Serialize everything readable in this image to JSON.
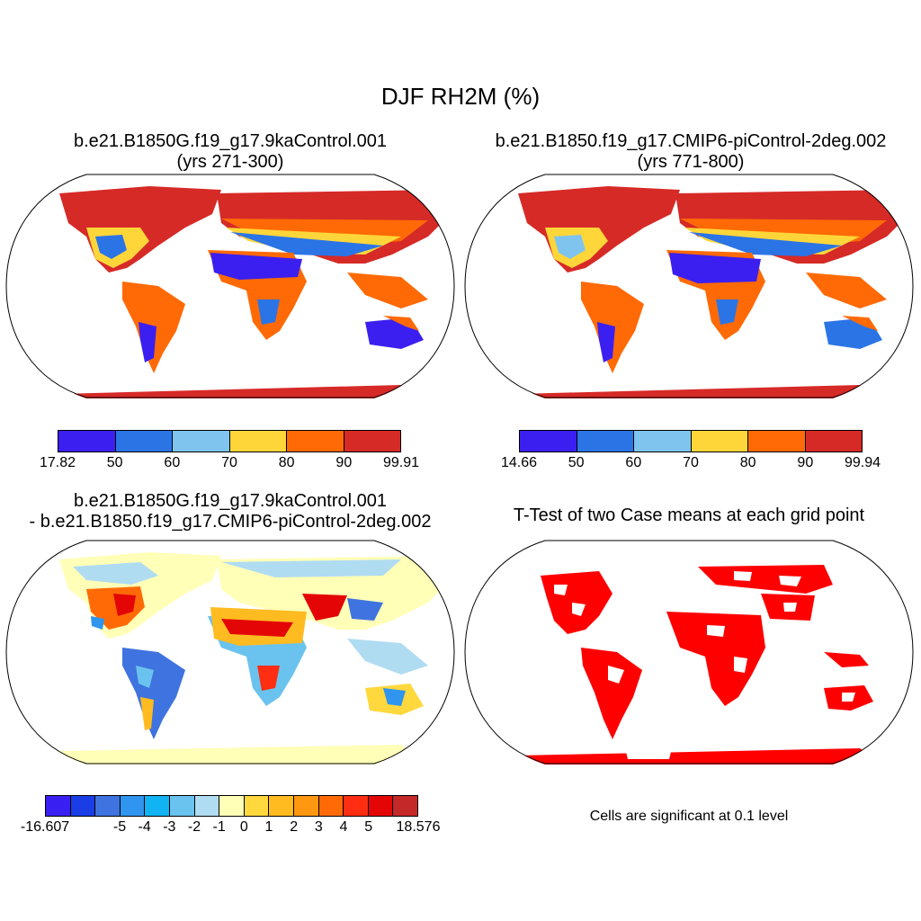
{
  "title": "DJF RH2M (%)",
  "panels": [
    {
      "title_line1": "b.e21.B1850G.f19_g17.9kaControl.001",
      "title_line2": "(yrs 271-300)",
      "colorbar": {
        "colors": [
          "#3b1ff0",
          "#2b74e6",
          "#7ec4ee",
          "#ffd63a",
          "#ff6a06",
          "#d62a27"
        ],
        "labels": [
          "17.82",
          "50",
          "60",
          "70",
          "80",
          "90",
          "99.91"
        ]
      }
    },
    {
      "title_line1": "b.e21.B1850.f19_g17.CMIP6-piControl-2deg.002",
      "title_line2": "(yrs 771-800)",
      "colorbar": {
        "colors": [
          "#3b1ff0",
          "#2b74e6",
          "#7ec4ee",
          "#ffd63a",
          "#ff6a06",
          "#d62a27"
        ],
        "labels": [
          "14.66",
          "50",
          "60",
          "70",
          "80",
          "90",
          "99.94"
        ]
      }
    },
    {
      "title_line1": "b.e21.B1850G.f19_g17.9kaControl.001",
      "title_line2": "- b.e21.B1850.f19_g17.CMIP6-piControl-2deg.002",
      "colorbar": {
        "colors": [
          "#3a1ff2",
          "#1b3de6",
          "#3f73df",
          "#2f95ee",
          "#12b3f2",
          "#6ac3ee",
          "#b0dcf2",
          "#ffffb8",
          "#ffd83d",
          "#ffbb20",
          "#ff9810",
          "#ff6a06",
          "#ff2e12",
          "#e40606",
          "#c42828"
        ],
        "labels": [
          "-16.607",
          "-5",
          "-4",
          "-3",
          "-2",
          "-1",
          "0",
          "1",
          "2",
          "3",
          "4",
          "5",
          "18.576"
        ]
      }
    },
    {
      "title_line1": "T-Test of two Case means at each grid point",
      "note": "Cells are significant at 0.1 level",
      "significant_color": "#ff0000"
    }
  ]
}
